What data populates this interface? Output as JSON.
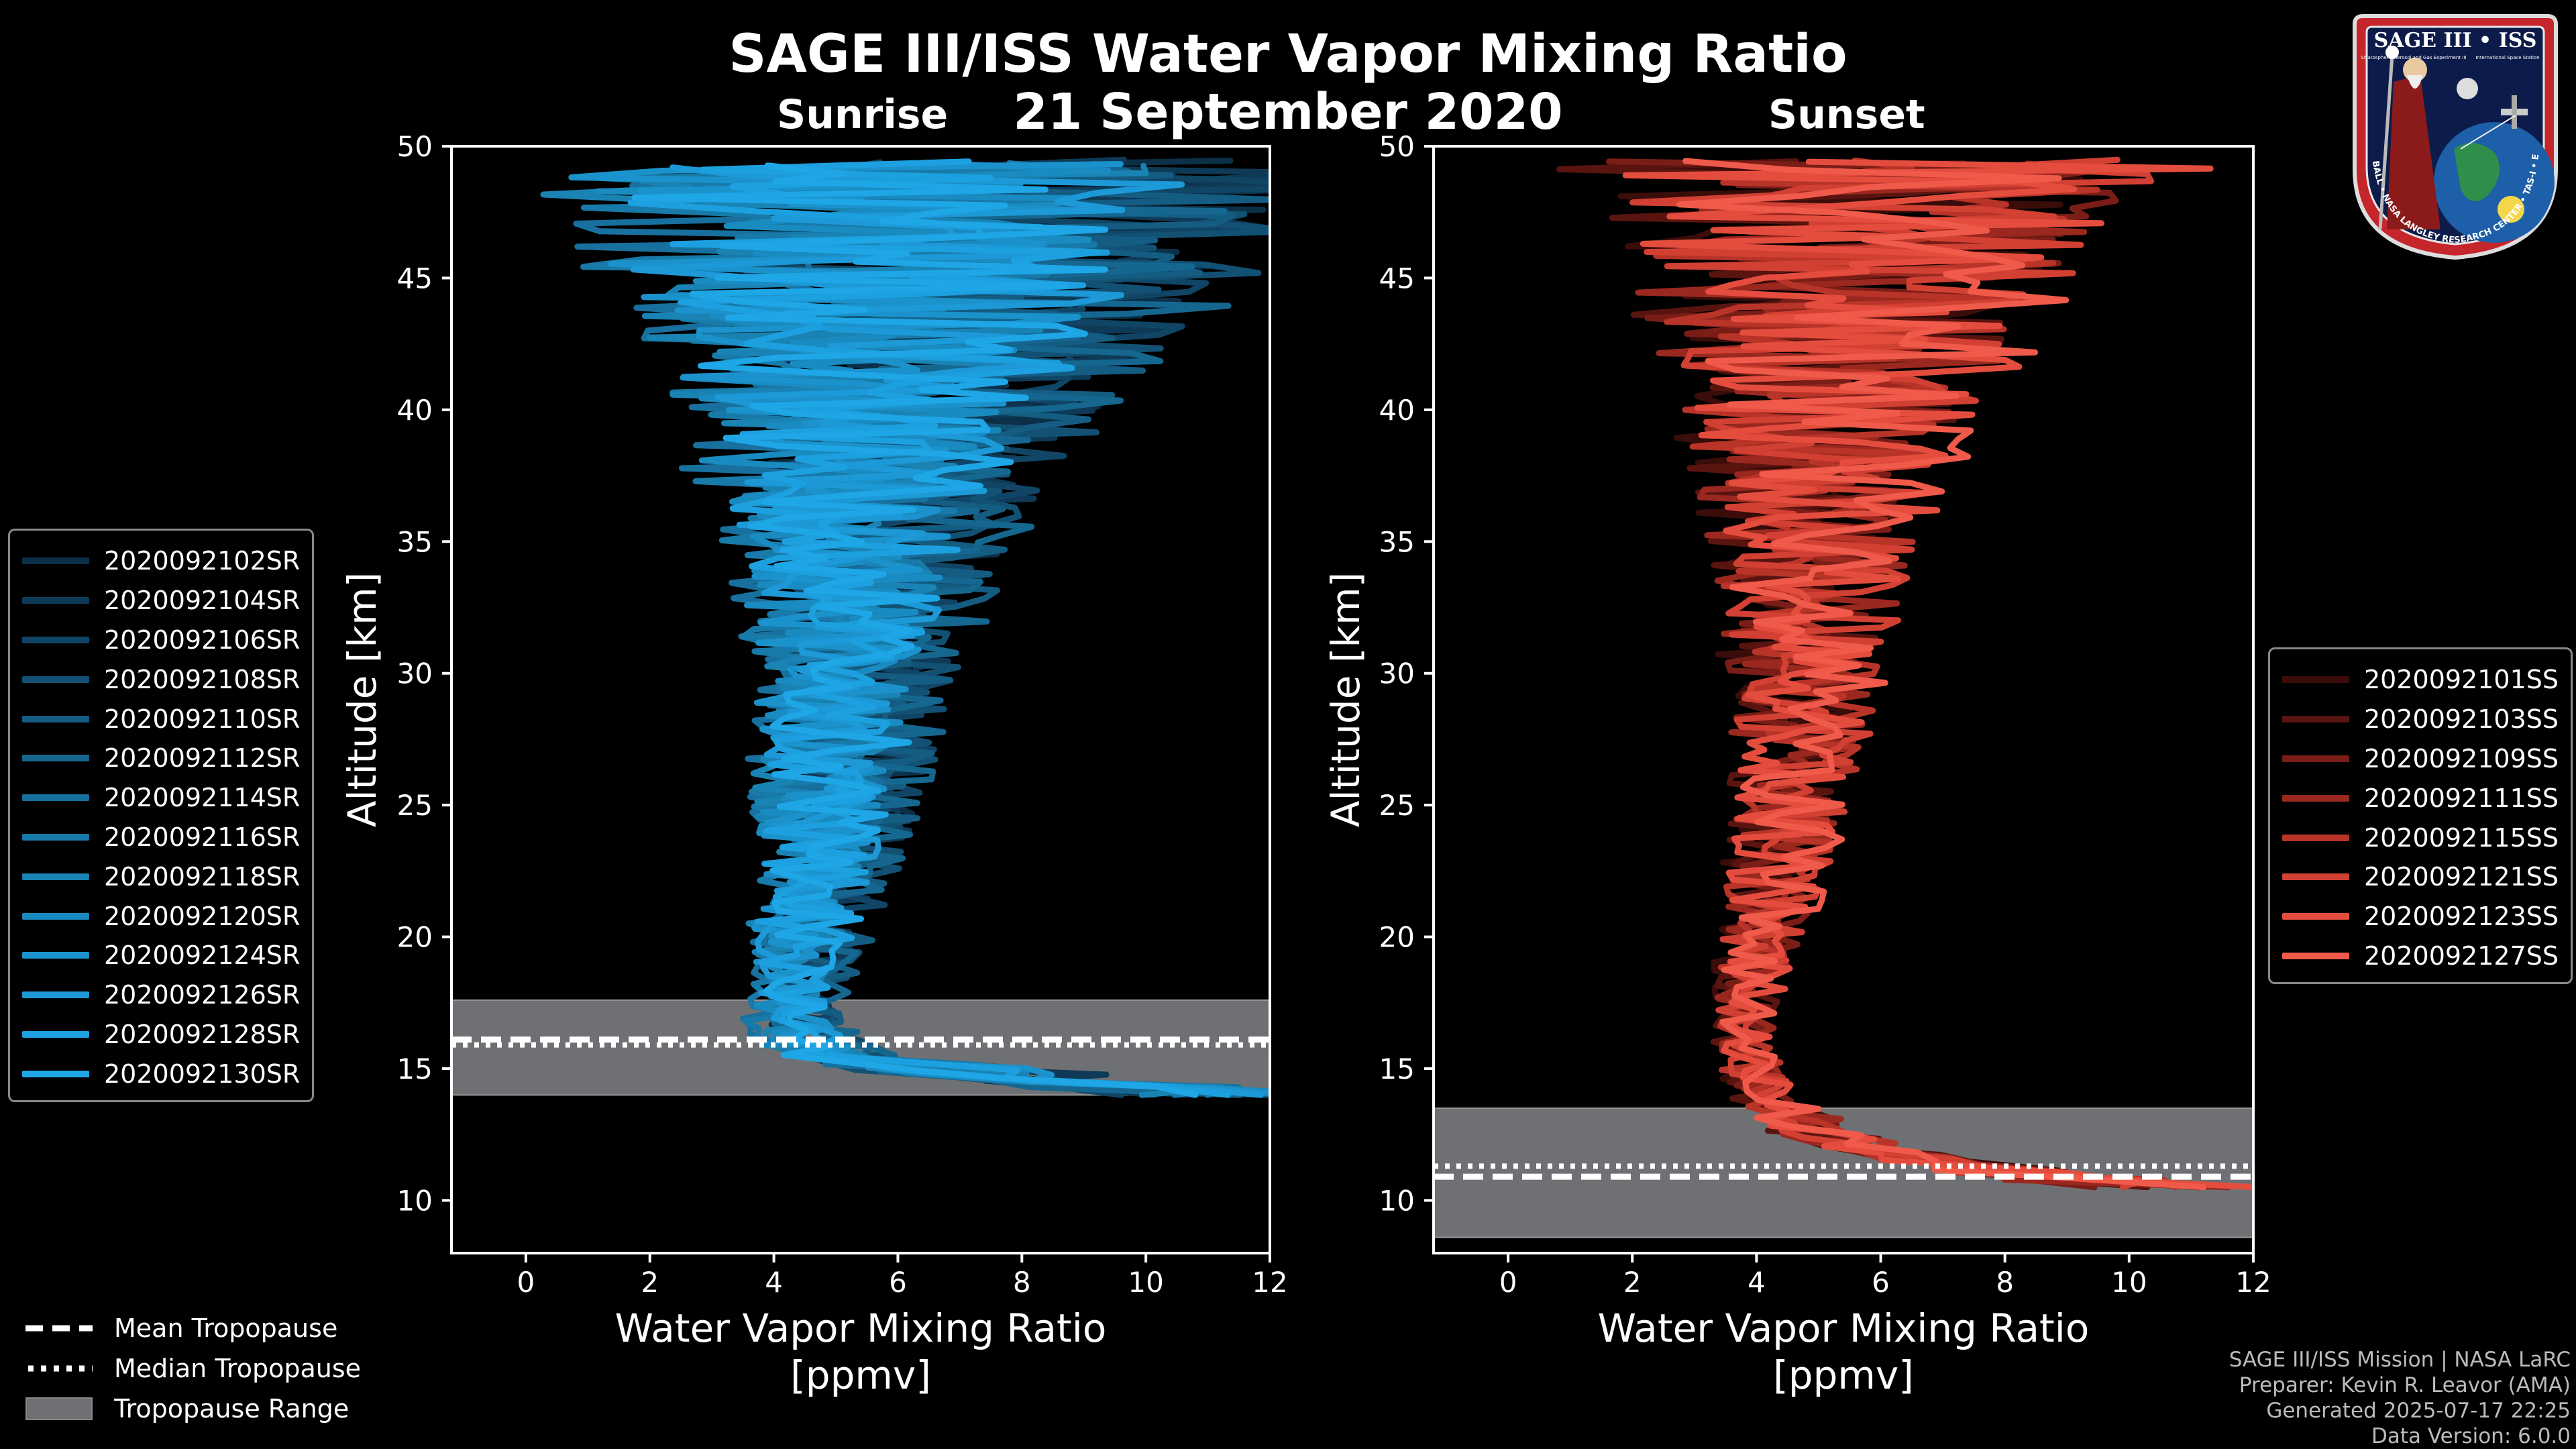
{
  "header": {
    "title": "SAGE III/ISS Water Vapor Mixing Ratio",
    "date": "21 September 2020"
  },
  "logo": {
    "name": "SAGE III • ISS",
    "subtitle_left": "Stratospheric Aerosol and Gas Experiment III",
    "subtitle_right": "International Space Station",
    "ring_text": "BALL • NASA LANGLEY RESEARCH CENTER • TAS-I • ESA"
  },
  "colors": {
    "sunrise": "#1b93d8",
    "sunset": "#f05a4a",
    "tropo_fill": "#6f7073",
    "background": "#000000",
    "axis": "#ffffff"
  },
  "tropopause_legend": {
    "mean": "Mean Tropopause",
    "median": "Median Tropopause",
    "range": "Tropopause Range"
  },
  "footer": {
    "line1": "SAGE III/ISS Mission | NASA LaRC",
    "line2": "Preparer: Kevin R. Leavor (AMA)",
    "line3": "Generated 2025-07-17 22:25",
    "line4": "Data Version: 6.0.0"
  },
  "chart_data": [
    {
      "type": "line",
      "panel": "Sunrise",
      "title": "Sunrise",
      "xlabel": "Water Vapor Mixing Ratio\n[ppmv]",
      "xlabel_line1": "Water Vapor Mixing Ratio",
      "xlabel_line2": "[ppmv]",
      "ylabel": "Altitude [km]",
      "xlim": [
        -1.2,
        12
      ],
      "ylim": [
        8,
        50
      ],
      "xticks": [
        0,
        2,
        4,
        6,
        8,
        10,
        12
      ],
      "yticks": [
        10,
        15,
        20,
        25,
        30,
        35,
        40,
        45,
        50
      ],
      "tropopause": {
        "mean": 16.1,
        "median": 15.9,
        "range": [
          14.0,
          17.6
        ]
      },
      "series_names": [
        "2020092102SR",
        "2020092104SR",
        "2020092106SR",
        "2020092108SR",
        "2020092110SR",
        "2020092112SR",
        "2020092114SR",
        "2020092116SR",
        "2020092118SR",
        "2020092120SR",
        "2020092124SR",
        "2020092126SR",
        "2020092128SR",
        "2020092130SR"
      ],
      "series_colors": [
        "#0c3048",
        "#0e3a57",
        "#104566",
        "#125174",
        "#145c82",
        "#156790",
        "#17709e",
        "#187aa8",
        "#1983b4",
        "#1a8bc0",
        "#1b92cc",
        "#1c99d6",
        "#1da0df",
        "#1ea6e6"
      ],
      "profile_shape": {
        "altitude_km": [
          14.0,
          14.5,
          15,
          15.5,
          16,
          17,
          18,
          19,
          20,
          22,
          24,
          26,
          28,
          30,
          32,
          34,
          36,
          38,
          40,
          42,
          44,
          46,
          48,
          49.5
        ],
        "center_ppmv": [
          10.5,
          8.0,
          6.0,
          5.0,
          4.6,
          4.3,
          4.4,
          4.5,
          4.6,
          4.8,
          5.0,
          5.1,
          5.2,
          5.3,
          5.4,
          5.5,
          5.6,
          5.8,
          6.0,
          6.2,
          6.4,
          6.6,
          6.8,
          7.0
        ],
        "spread_ppmv": [
          1.5,
          1.2,
          1.0,
          0.8,
          0.7,
          0.6,
          0.6,
          0.7,
          0.8,
          0.9,
          1.0,
          1.1,
          1.2,
          1.3,
          1.5,
          1.7,
          2.0,
          2.4,
          2.8,
          3.2,
          3.8,
          4.4,
          5.0,
          5.5
        ]
      }
    },
    {
      "type": "line",
      "panel": "Sunset",
      "title": "Sunset",
      "xlabel": "Water Vapor Mixing Ratio\n[ppmv]",
      "xlabel_line1": "Water Vapor Mixing Ratio",
      "xlabel_line2": "[ppmv]",
      "ylabel": "Altitude [km]",
      "xlim": [
        -1.2,
        12
      ],
      "ylim": [
        8,
        50
      ],
      "xticks": [
        0,
        2,
        4,
        6,
        8,
        10,
        12
      ],
      "yticks": [
        10,
        15,
        20,
        25,
        30,
        35,
        40,
        45,
        50
      ],
      "tropopause": {
        "mean": 10.9,
        "median": 11.3,
        "range": [
          8.6,
          13.5
        ]
      },
      "series_names": [
        "2020092101SS",
        "2020092103SS",
        "2020092109SS",
        "2020092111SS",
        "2020092115SS",
        "2020092121SS",
        "2020092123SS",
        "2020092127SS"
      ],
      "series_colors": [
        "#3a0c0a",
        "#5a1410",
        "#7a1d17",
        "#9a281f",
        "#b83328",
        "#d14033",
        "#e44d3e",
        "#f05a4a"
      ],
      "profile_shape": {
        "altitude_km": [
          10.5,
          11,
          11.5,
          12,
          12.5,
          13,
          14,
          15,
          16,
          17,
          18,
          19,
          20,
          22,
          24,
          26,
          28,
          30,
          32,
          34,
          36,
          38,
          40,
          42,
          44,
          46,
          48,
          49.5
        ],
        "center_ppmv": [
          11.0,
          8.5,
          7.0,
          6.0,
          5.2,
          4.8,
          4.3,
          4.0,
          3.9,
          3.9,
          4.0,
          4.1,
          4.2,
          4.4,
          4.6,
          4.8,
          4.9,
          5.0,
          5.1,
          5.2,
          5.3,
          5.4,
          5.6,
          5.8,
          6.0,
          6.3,
          6.6,
          7.0
        ],
        "spread_ppmv": [
          1.5,
          1.4,
          1.2,
          1.0,
          0.9,
          0.8,
          0.6,
          0.5,
          0.5,
          0.5,
          0.6,
          0.6,
          0.7,
          0.8,
          0.9,
          1.0,
          1.1,
          1.2,
          1.4,
          1.6,
          1.8,
          2.1,
          2.4,
          2.8,
          3.2,
          3.8,
          4.4,
          5.0
        ]
      }
    }
  ]
}
